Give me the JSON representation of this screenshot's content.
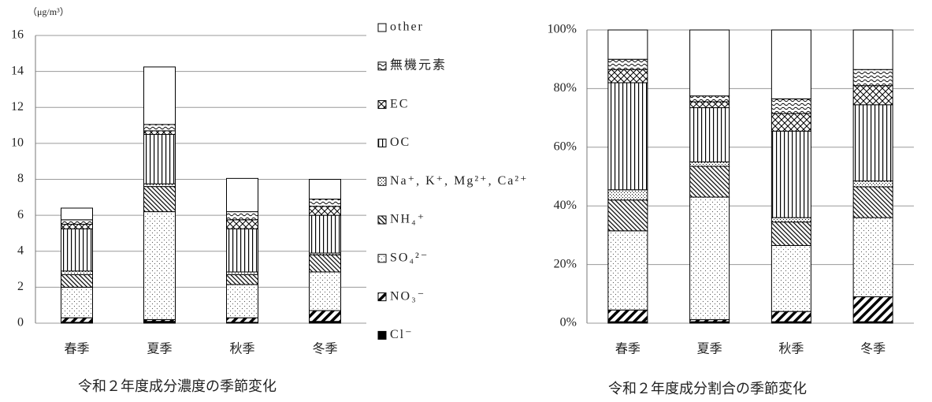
{
  "chart_data": [
    {
      "type": "stacked_bar",
      "title": "令和２年度成分濃度の季節変化",
      "unit_label": "（μg/m³）",
      "categories": [
        "春季",
        "夏季",
        "秋季",
        "冬季"
      ],
      "ylim": [
        0,
        16
      ],
      "yticks": [
        0,
        2,
        4,
        6,
        8,
        10,
        12,
        14,
        16
      ],
      "grid": true,
      "legend": "right",
      "series": [
        {
          "name": "Cl⁻",
          "color": "#000000",
          "pattern": "solid",
          "values": [
            0.05,
            0.1,
            0.05,
            0.1
          ]
        },
        {
          "name": "NO₃⁻",
          "color": "#000000",
          "pattern": "stripes",
          "values": [
            0.25,
            0.1,
            0.25,
            0.6
          ]
        },
        {
          "name": "SO₄²⁻",
          "color": "#000000",
          "pattern": "dots",
          "values": [
            1.7,
            6.0,
            1.85,
            2.15
          ]
        },
        {
          "name": "NH₄⁺",
          "color": "#000000",
          "pattern": "hatch",
          "values": [
            0.7,
            1.4,
            0.55,
            0.95
          ]
        },
        {
          "name": "Na⁺, K⁺, Mg²⁺, Ca²⁺",
          "color": "#000000",
          "pattern": "checks",
          "values": [
            0.2,
            0.15,
            0.15,
            0.1
          ]
        },
        {
          "name": "OC",
          "color": "#000000",
          "pattern": "vlines",
          "values": [
            2.35,
            2.75,
            2.4,
            2.1
          ]
        },
        {
          "name": "EC",
          "color": "#000000",
          "pattern": "cross",
          "values": [
            0.25,
            0.2,
            0.5,
            0.5
          ]
        },
        {
          "name": "無機元素",
          "color": "#000000",
          "pattern": "wave",
          "values": [
            0.25,
            0.35,
            0.45,
            0.4
          ]
        },
        {
          "name": "other",
          "color": "#000000",
          "pattern": "none",
          "values": [
            0.65,
            3.2,
            1.85,
            1.1
          ]
        }
      ]
    },
    {
      "type": "stacked_bar",
      "title": "令和２年度成分割合の季節変化",
      "categories": [
        "春季",
        "夏季",
        "秋季",
        "冬季"
      ],
      "ylim": [
        0,
        100
      ],
      "yticks": [
        {
          "value": 0,
          "label": "0%"
        },
        {
          "value": 20,
          "label": "20%"
        },
        {
          "value": 40,
          "label": "40%"
        },
        {
          "value": 60,
          "label": "60%"
        },
        {
          "value": 80,
          "label": "80%"
        },
        {
          "value": 100,
          "label": "100%"
        }
      ],
      "grid": true,
      "series": [
        {
          "color": "#000000",
          "pattern": "solid",
          "values": [
            0.5,
            0.5,
            0.5,
            0.5
          ]
        },
        {
          "color": "#000000",
          "pattern": "stripes",
          "values": [
            4.0,
            0.7,
            3.5,
            8.5
          ]
        },
        {
          "color": "#000000",
          "pattern": "dots",
          "values": [
            27.0,
            41.8,
            22.5,
            27.0
          ]
        },
        {
          "color": "#000000",
          "pattern": "hatch",
          "values": [
            10.5,
            10.5,
            8.0,
            10.5
          ]
        },
        {
          "color": "#000000",
          "pattern": "checks",
          "values": [
            3.5,
            1.5,
            1.5,
            2.0
          ]
        },
        {
          "color": "#000000",
          "pattern": "vlines",
          "values": [
            36.5,
            18.5,
            29.5,
            26.0
          ]
        },
        {
          "color": "#000000",
          "pattern": "cross",
          "values": [
            4.5,
            2.0,
            6.0,
            6.5
          ]
        },
        {
          "color": "#000000",
          "pattern": "wave",
          "values": [
            3.5,
            2.0,
            5.0,
            5.5
          ]
        },
        {
          "color": "#000000",
          "pattern": "none",
          "values": [
            10.0,
            22.5,
            23.5,
            13.5
          ]
        }
      ]
    }
  ]
}
